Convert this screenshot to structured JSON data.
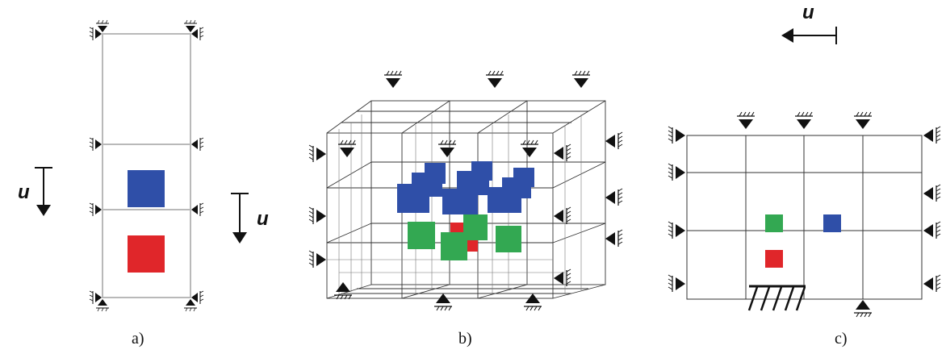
{
  "panels": [
    {
      "id": "a",
      "caption": "a)"
    },
    {
      "id": "b",
      "caption": "b)"
    },
    {
      "id": "c",
      "caption": "c)"
    }
  ],
  "load_label": "u",
  "colors": {
    "blue": "#2f4fa8",
    "red": "#e0262a",
    "green": "#33a852",
    "frame_light": "#b9b9b9",
    "frame_dark": "#333333",
    "support": "#111111"
  }
}
